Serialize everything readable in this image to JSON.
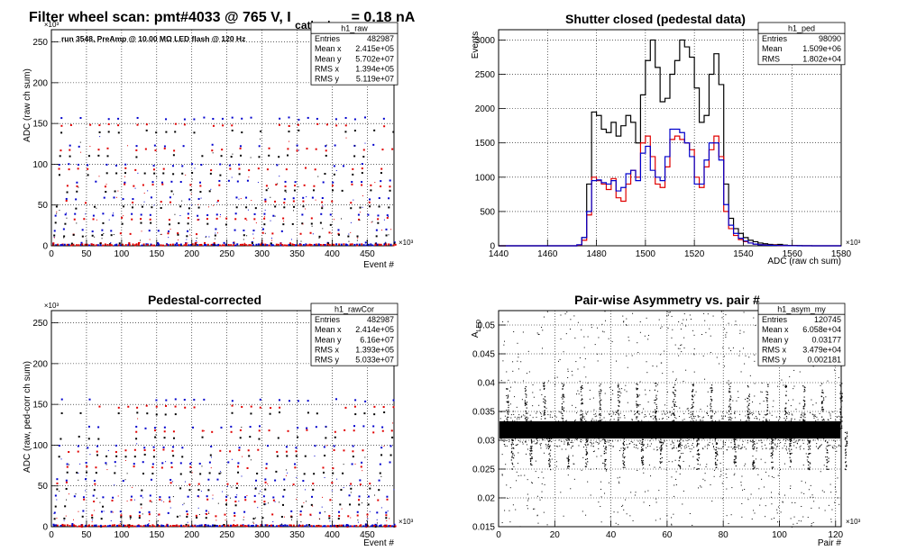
{
  "main_title": {
    "pre": "Filter wheel scan: pmt#4033 @   765 V, I",
    "sub": "cathode",
    "post": "= 0.18 nA"
  },
  "colors": {
    "black": "#000000",
    "red": "#e00000",
    "blue": "#0000cc",
    "grid": "#000000"
  },
  "panels": [
    {
      "id": "raw",
      "title": "",
      "annotation": "run 3548, PreAmp @ 10.00 MΩ LED flash @  120 Hz",
      "xlabel": "Event #",
      "ylabel": "ADC (raw ch sum)",
      "x_exponent": "×10³",
      "y_exponent": "×10³",
      "x_ticks": [
        "0",
        "50",
        "100",
        "150",
        "200",
        "250",
        "300",
        "350",
        "400",
        "450"
      ],
      "y_ticks": [
        "0",
        "50",
        "100",
        "150",
        "200",
        "250"
      ],
      "stats": {
        "name": "h1_raw",
        "rows": [
          [
            "Entries",
            "482987"
          ],
          [
            "Mean x",
            "2.415e+05"
          ],
          [
            "Mean y",
            "5.702e+07"
          ],
          [
            "RMS x",
            "1.394e+05"
          ],
          [
            "RMS y",
            "5.119e+07"
          ]
        ]
      }
    },
    {
      "id": "ped",
      "title": "Shutter closed (pedestal data)",
      "annotation": "",
      "xlabel": "ADC (raw ch sum)",
      "ylabel": "Events",
      "x_exponent": "×10³",
      "y_exponent": "",
      "x_ticks": [
        "1440",
        "1460",
        "1480",
        "1500",
        "1520",
        "1540",
        "1560",
        "1580"
      ],
      "y_ticks": [
        "0",
        "500",
        "1000",
        "1500",
        "2000",
        "2500",
        "3000"
      ],
      "stats": {
        "name": "h1_ped",
        "rows": [
          [
            "Entries",
            "98090"
          ],
          [
            "Mean",
            "1.509e+06"
          ],
          [
            "RMS",
            "1.802e+04"
          ]
        ]
      }
    },
    {
      "id": "rawcor",
      "title": "Pedestal-corrected",
      "annotation": "",
      "xlabel": "Event #",
      "ylabel": "ADC (raw, ped-corr ch sum)",
      "x_exponent": "×10³",
      "y_exponent": "×10³",
      "x_ticks": [
        "0",
        "50",
        "100",
        "150",
        "200",
        "250",
        "300",
        "350",
        "400",
        "450"
      ],
      "y_ticks": [
        "0",
        "50",
        "100",
        "150",
        "200",
        "250"
      ],
      "stats": {
        "name": "h1_rawCor",
        "rows": [
          [
            "Entries",
            "482987"
          ],
          [
            "Mean x",
            "2.414e+05"
          ],
          [
            "Mean y",
            "6.16e+07"
          ],
          [
            "RMS x",
            "1.393e+05"
          ],
          [
            "RMS y",
            "5.033e+07"
          ]
        ]
      }
    },
    {
      "id": "asym",
      "title": "Pair-wise Asymmetry vs. pair #",
      "annotation": "",
      "xlabel": "Pair #",
      "ylabel_main": "A",
      "ylabel_sub": "LED",
      "x_exponent": "×10³",
      "y_exponent": "",
      "x_ticks": [
        "0",
        "20",
        "40",
        "60",
        "80",
        "100",
        "120"
      ],
      "y_ticks": [
        "0.015",
        "0.02",
        "0.025",
        "0.03",
        "0.035",
        "0.04",
        "0.045",
        "0.05"
      ],
      "stats": {
        "name": "h1_asym_my",
        "rows": [
          [
            "Entries",
            "120745"
          ],
          [
            "Mean x",
            "6.058e+04"
          ],
          [
            "Mean y",
            "0.03177"
          ],
          [
            "RMS x",
            "3.479e+04"
          ],
          [
            "RMS y",
            "0.002181"
          ]
        ]
      }
    }
  ],
  "chart_data": [
    {
      "type": "scatter",
      "title": "",
      "xlabel": "Event #",
      "ylabel": "ADC (raw ch sum)",
      "xlim": [
        0,
        488
      ],
      "ylim": [
        0,
        265
      ],
      "units_note": "x in 10^3 events, y in 10^3 ADC",
      "grid": true,
      "series": [
        {
          "name": "",
          "color": "#0000cc",
          "levels": [
            3,
            19,
            38,
            58,
            79,
            99,
            123,
            156
          ]
        },
        {
          "name": "",
          "color": "#e00000",
          "levels": [
            2,
            15,
            33,
            54,
            74,
            94,
            118,
            148
          ]
        },
        {
          "name": "",
          "color": "#000000",
          "levels": [
            2,
            12,
            27,
            47,
            67,
            88,
            110,
            140
          ]
        }
      ],
      "x_period": 13.5
    },
    {
      "type": "line",
      "title": "Shutter closed (pedestal data)",
      "xlabel": "ADC (raw ch sum)",
      "ylabel": "Events",
      "xlim": [
        1440,
        1580
      ],
      "ylim": [
        0,
        3150
      ],
      "x_bin_width": 2,
      "x_start": 1440,
      "grid": true,
      "series": [
        {
          "name": "",
          "color": "#000000",
          "values": [
            0,
            0,
            0,
            0,
            0,
            0,
            0,
            0,
            0,
            0,
            0,
            0,
            0,
            0,
            0,
            0,
            10,
            120,
            900,
            1950,
            1900,
            1700,
            1650,
            1800,
            1600,
            1750,
            1900,
            1800,
            1500,
            2200,
            2700,
            3000,
            2600,
            2100,
            2150,
            2500,
            2700,
            3000,
            2900,
            2750,
            2300,
            1800,
            1900,
            2500,
            2800,
            2350,
            900,
            400,
            250,
            180,
            120,
            80,
            60,
            40,
            30,
            20,
            15,
            20,
            10,
            5,
            5,
            3,
            2,
            2,
            0,
            0,
            0,
            0,
            0,
            0
          ]
        },
        {
          "name": "",
          "color": "#e00000",
          "values": [
            0,
            0,
            0,
            0,
            0,
            0,
            0,
            0,
            0,
            0,
            0,
            0,
            0,
            0,
            0,
            0,
            10,
            80,
            450,
            1000,
            950,
            900,
            820,
            980,
            700,
            650,
            900,
            1100,
            1000,
            1500,
            1600,
            1300,
            900,
            850,
            1150,
            1550,
            1600,
            1550,
            1500,
            1400,
            1000,
            850,
            1150,
            1400,
            1600,
            1300,
            500,
            250,
            150,
            90,
            60,
            40,
            25,
            15,
            10,
            8,
            8,
            5,
            3,
            2,
            2,
            1,
            0,
            0,
            0,
            0,
            0,
            0,
            0,
            0
          ]
        },
        {
          "name": "",
          "color": "#0000cc",
          "values": [
            0,
            0,
            0,
            0,
            0,
            0,
            0,
            0,
            0,
            0,
            0,
            0,
            0,
            0,
            0,
            0,
            15,
            120,
            500,
            950,
            960,
            920,
            900,
            950,
            800,
            850,
            1050,
            1100,
            950,
            1350,
            1450,
            1100,
            1000,
            950,
            1300,
            1700,
            1700,
            1650,
            1500,
            1300,
            900,
            900,
            1250,
            1500,
            1500,
            1250,
            600,
            300,
            180,
            110,
            70,
            40,
            25,
            15,
            10,
            8,
            6,
            4,
            3,
            2,
            1,
            0,
            0,
            0,
            0,
            0,
            0,
            0,
            0,
            0
          ]
        }
      ]
    },
    {
      "type": "scatter",
      "title": "Pedestal-corrected",
      "xlabel": "Event #",
      "ylabel": "ADC (raw, ped-corr ch sum)",
      "xlim": [
        0,
        488
      ],
      "ylim": [
        0,
        265
      ],
      "units_note": "x in 10^3 events, y in 10^3 ADC",
      "grid": true,
      "series": [
        {
          "name": "",
          "color": "#0000cc",
          "levels": [
            2,
            18,
            37,
            57,
            78,
            98,
            122,
            155
          ]
        },
        {
          "name": "",
          "color": "#e00000",
          "levels": [
            1,
            14,
            32,
            53,
            73,
            93,
            117,
            147
          ]
        },
        {
          "name": "",
          "color": "#000000",
          "levels": [
            1,
            11,
            26,
            46,
            66,
            87,
            109,
            139
          ]
        }
      ],
      "x_period": 13.5
    },
    {
      "type": "scatter",
      "title": "Pair-wise Asymmetry vs. pair #",
      "xlabel": "Pair #",
      "ylabel": "A_LED",
      "xlim": [
        0,
        122
      ],
      "ylim": [
        0.015,
        0.0525
      ],
      "units_note": "x in 10^3 pairs",
      "grid": true,
      "series": [
        {
          "name": "",
          "color": "#000000",
          "center": 0.0318,
          "band_halfwidth": 0.0015,
          "spike_period": 6.6,
          "spike_up_to": 0.04,
          "spike_down_to": 0.025
        }
      ]
    }
  ]
}
